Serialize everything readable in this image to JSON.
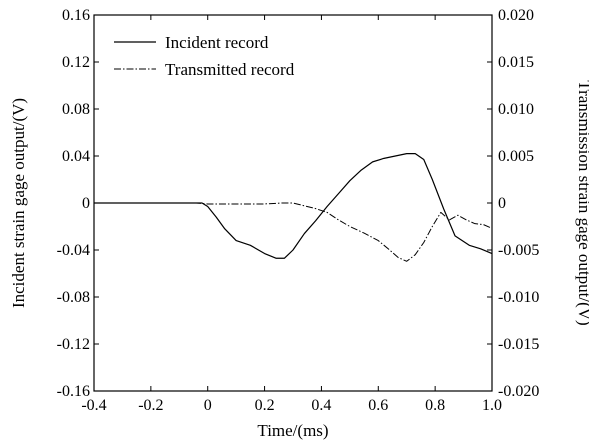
{
  "chart_data": {
    "type": "line",
    "title": "",
    "xlabel": "Time/(ms)",
    "ylabel_left": "Incident strain gage output/(V)",
    "ylabel_right": "Transmission strain gage output/(V)",
    "xlim": [
      -0.4,
      1.0
    ],
    "ylim_left": [
      -0.16,
      0.16
    ],
    "ylim_right": [
      -0.02,
      0.02
    ],
    "x_ticks": [
      "-0.4",
      "-0.2",
      "0",
      "0.2",
      "0.4",
      "0.6",
      "0.8",
      "1.0"
    ],
    "y_ticks_left": [
      "0.16",
      "0.12",
      "0.08",
      "0.04",
      "0",
      "-0.04",
      "-0.08",
      "-0.12",
      "-0.16"
    ],
    "y_ticks_right": [
      "0.020",
      "0.015",
      "0.010",
      "0.005",
      "0",
      "-0.005",
      "-0.010",
      "-0.015",
      "-0.020"
    ],
    "grid": false,
    "legend_position": "top-left",
    "series": [
      {
        "name": "Incident record",
        "axis": "left",
        "style": "solid",
        "x": [
          -0.4,
          -0.2,
          -0.05,
          -0.02,
          0.0,
          0.03,
          0.06,
          0.1,
          0.15,
          0.2,
          0.24,
          0.27,
          0.3,
          0.34,
          0.38,
          0.42,
          0.46,
          0.5,
          0.54,
          0.58,
          0.62,
          0.66,
          0.7,
          0.73,
          0.76,
          0.79,
          0.83,
          0.87,
          0.92,
          0.96,
          1.0
        ],
        "y": [
          0.0,
          0.0,
          0.0,
          0.0,
          -0.003,
          -0.012,
          -0.022,
          -0.032,
          -0.036,
          -0.043,
          -0.047,
          -0.047,
          -0.04,
          -0.026,
          -0.015,
          -0.003,
          0.008,
          0.019,
          0.028,
          0.035,
          0.038,
          0.04,
          0.042,
          0.042,
          0.037,
          0.02,
          -0.005,
          -0.028,
          -0.036,
          -0.039,
          -0.043
        ]
      },
      {
        "name": "Transmitted record",
        "axis": "right",
        "style": "dash-dot",
        "x": [
          -0.4,
          -0.2,
          -0.04,
          0.0,
          0.1,
          0.2,
          0.26,
          0.3,
          0.34,
          0.38,
          0.42,
          0.46,
          0.5,
          0.55,
          0.6,
          0.64,
          0.67,
          0.7,
          0.73,
          0.76,
          0.79,
          0.82,
          0.85,
          0.88,
          0.91,
          0.94,
          0.97,
          1.0
        ],
        "y": [
          0.0,
          0.0,
          0.0,
          -0.0001,
          -0.0001,
          -0.0001,
          0.0,
          0.0,
          -0.0003,
          -0.0006,
          -0.001,
          -0.0018,
          -0.0025,
          -0.0032,
          -0.004,
          -0.005,
          -0.0058,
          -0.0062,
          -0.0055,
          -0.0042,
          -0.0025,
          -0.001,
          -0.0018,
          -0.0013,
          -0.0018,
          -0.0022,
          -0.0023,
          -0.0027
        ]
      }
    ]
  }
}
